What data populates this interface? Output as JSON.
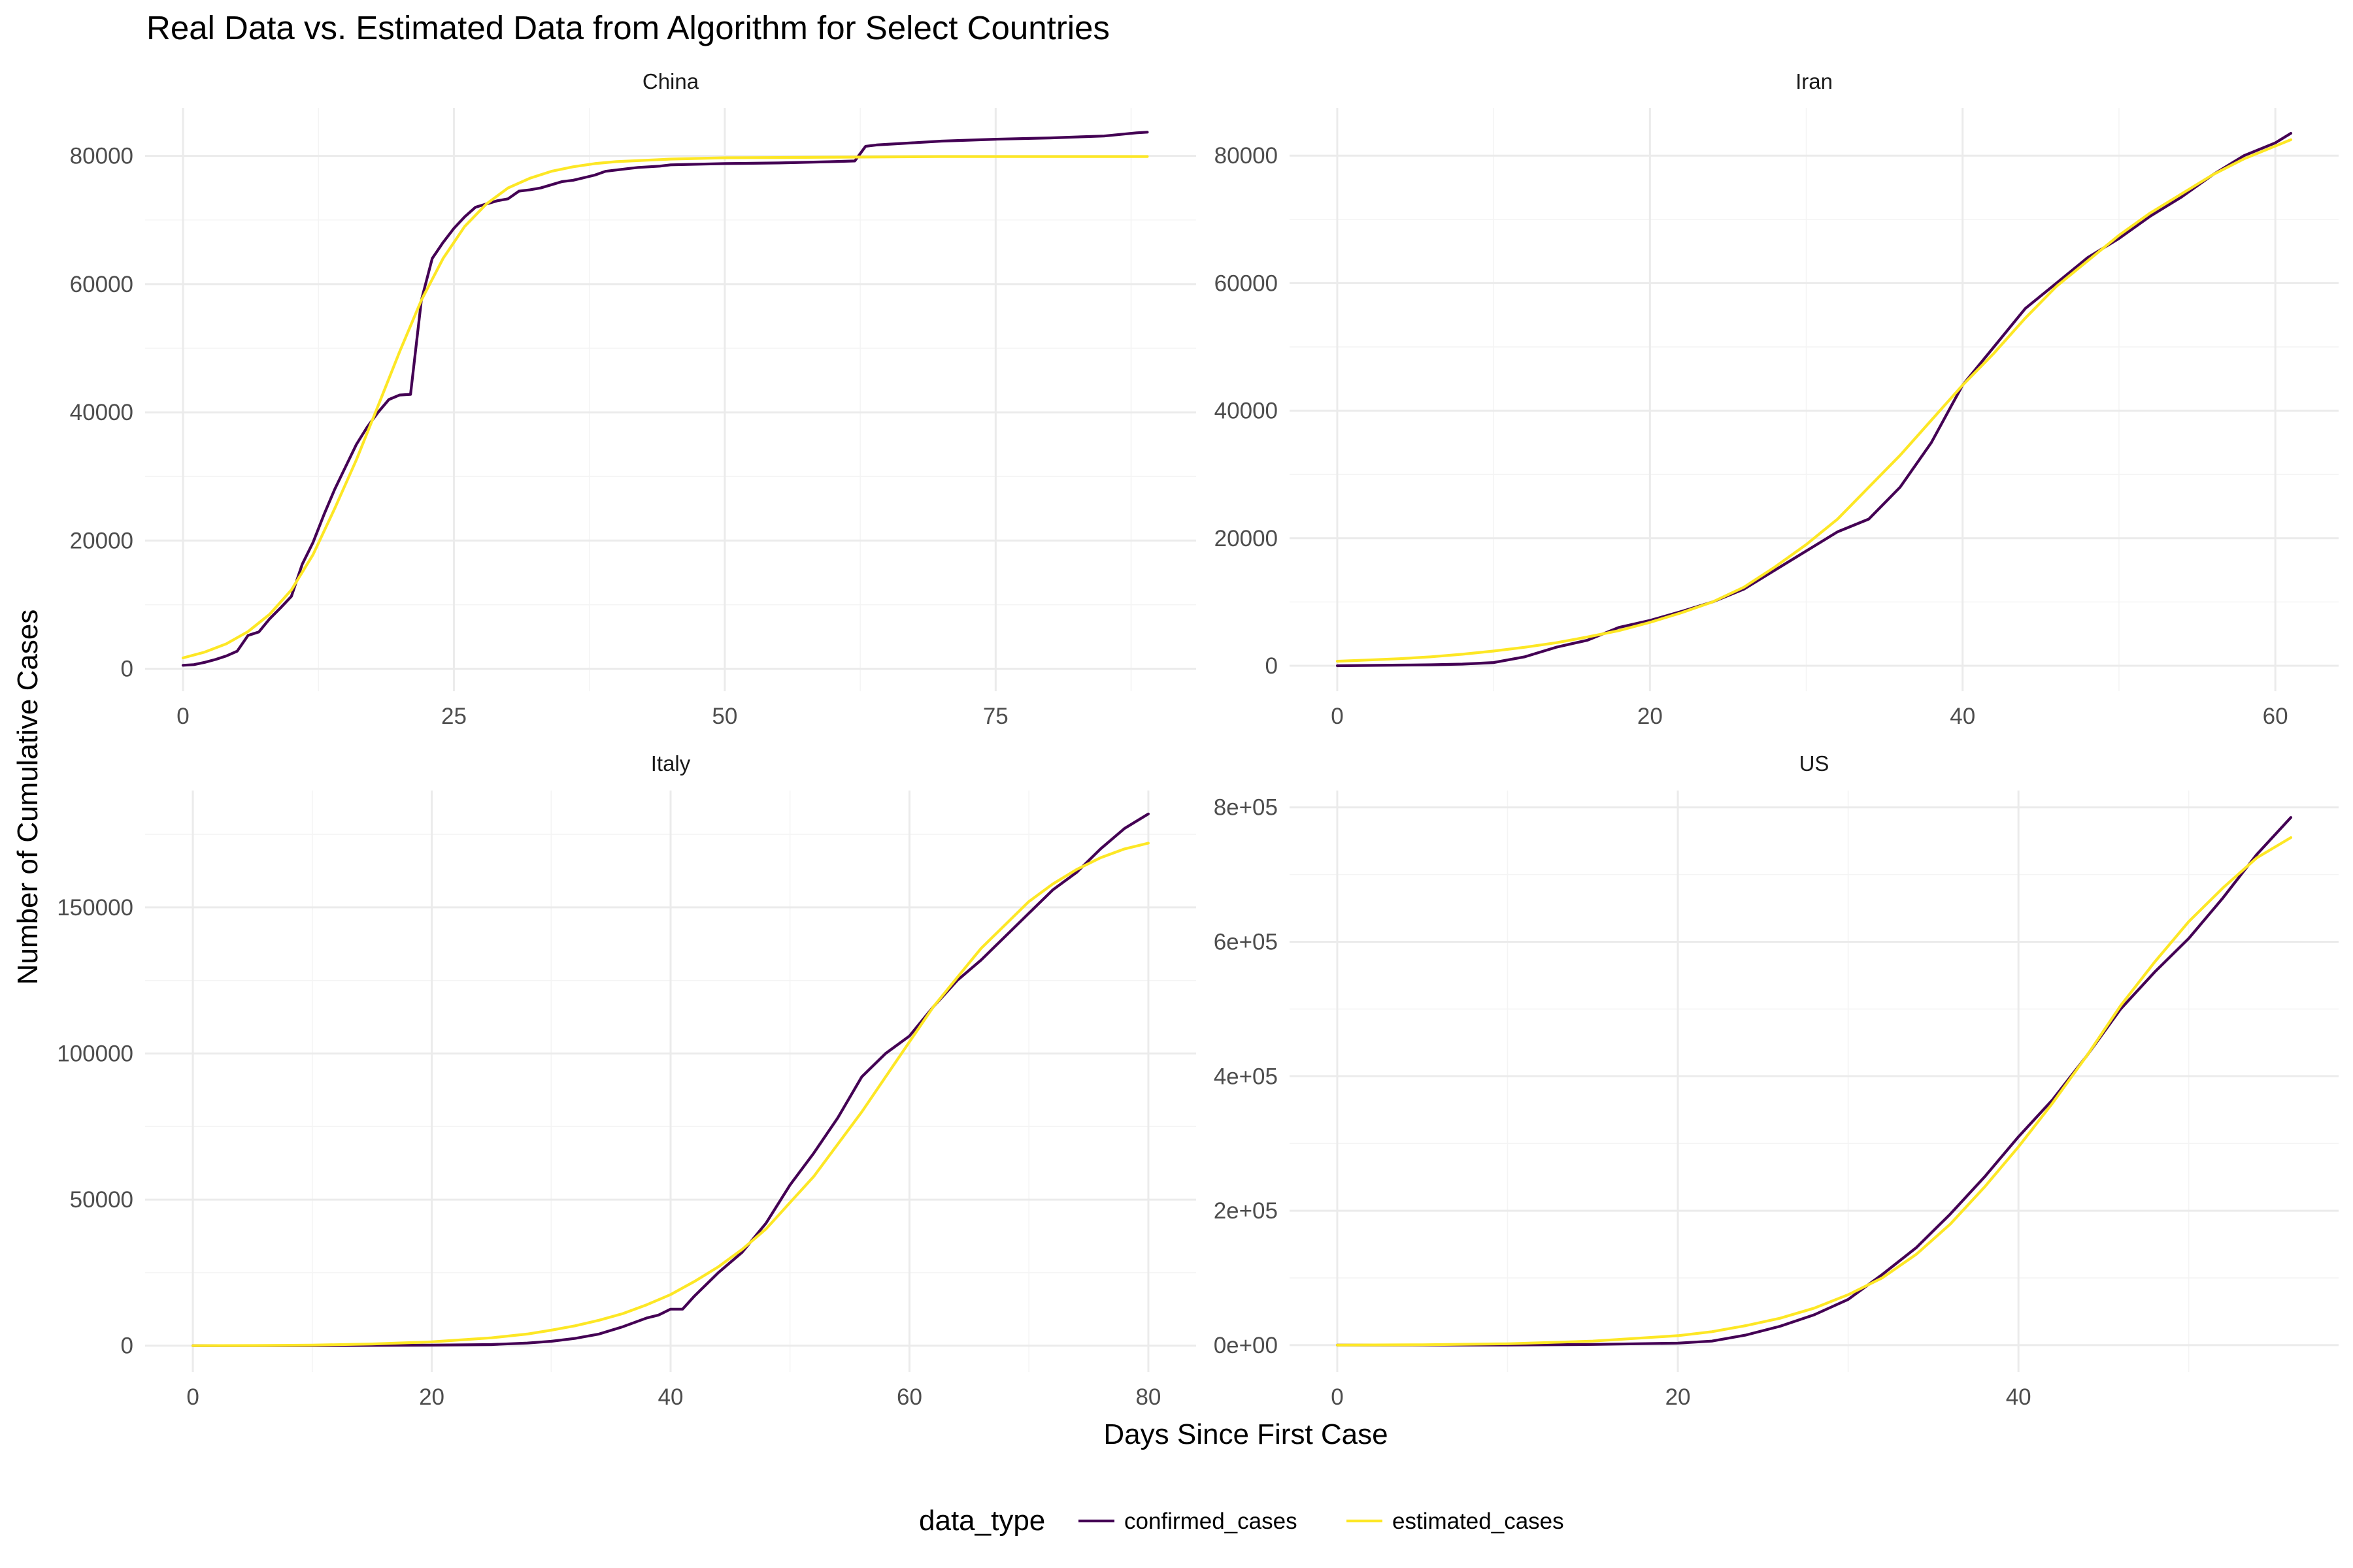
{
  "chart_data": {
    "type": "line",
    "title": "Real Data vs. Estimated Data from Algorithm for Select Countries",
    "xlabel": "Days Since First Case",
    "ylabel": "Number of Cumulative Cases",
    "legend": {
      "title": "data_type",
      "position": "bottom",
      "entries": [
        {
          "name": "confirmed_cases",
          "color": "#440154"
        },
        {
          "name": "estimated_cases",
          "color": "#FDE725"
        }
      ]
    },
    "colors": {
      "confirmed_cases": "#440154",
      "estimated_cases": "#FDE725",
      "grid": "#EBEBEB"
    },
    "panels": [
      {
        "name": "China",
        "xlim": [
          -3.5,
          93.5
        ],
        "ylim": [
          -3500,
          87500
        ],
        "xticks": [
          0,
          25,
          50,
          75
        ],
        "xtick_labels": [
          "0",
          "25",
          "50",
          "75"
        ],
        "yticks": [
          0,
          20000,
          40000,
          60000,
          80000
        ],
        "ytick_labels": [
          "0",
          "20000",
          "40000",
          "60000",
          "80000"
        ],
        "series": [
          {
            "name": "confirmed_cases",
            "x": [
              0,
              1,
              2,
              3,
              4,
              5,
              6,
              7,
              8,
              9,
              10,
              11,
              12,
              13,
              14,
              15,
              16,
              17,
              18,
              19,
              20,
              21,
              22,
              23,
              24,
              25,
              26,
              27,
              28,
              29,
              30,
              31,
              32,
              33,
              34,
              35,
              36,
              37,
              38,
              39,
              40,
              41,
              42,
              43,
              44,
              45,
              50,
              55,
              60,
              62,
              63,
              64,
              65,
              70,
              75,
              80,
              85,
              88,
              89
            ],
            "y": [
              550,
              650,
              1000,
              1450,
              2000,
              2750,
              5200,
              5750,
              7800,
              9500,
              11300,
              16300,
              19700,
              24000,
              28000,
              31500,
              35000,
              37700,
              40000,
              42000,
              42700,
              42800,
              57500,
              64000,
              66500,
              68700,
              70500,
              72000,
              72500,
              73000,
              73300,
              74500,
              74700,
              75000,
              75500,
              76000,
              76200,
              76600,
              77000,
              77600,
              77800,
              78000,
              78200,
              78300,
              78400,
              78600,
              78800,
              78900,
              79100,
              79200,
              81500,
              81700,
              81800,
              82300,
              82600,
              82800,
              83100,
              83600,
              83700
            ]
          },
          {
            "name": "estimated_cases",
            "x": [
              0,
              2,
              4,
              6,
              8,
              10,
              12,
              14,
              16,
              18,
              20,
              22,
              24,
              26,
              28,
              30,
              32,
              34,
              36,
              38,
              40,
              45,
              50,
              55,
              60,
              65,
              70,
              75,
              80,
              85,
              89
            ],
            "y": [
              1700,
              2600,
              3900,
              5800,
              8500,
              12300,
              17800,
              25000,
              32600,
              41000,
              49500,
              57500,
              64000,
              69000,
              72500,
              75000,
              76500,
              77600,
              78300,
              78800,
              79100,
              79500,
              79700,
              79750,
              79800,
              79850,
              79900,
              79900,
              79900,
              79900,
              79900
            ]
          }
        ]
      },
      {
        "name": "Iran",
        "xlim": [
          -3.05,
          64.05
        ],
        "ylim": [
          -4000,
          87500
        ],
        "xticks": [
          0,
          20,
          40,
          60
        ],
        "xtick_labels": [
          "0",
          "20",
          "40",
          "60"
        ],
        "yticks": [
          0,
          20000,
          40000,
          60000,
          80000
        ],
        "ytick_labels": [
          "0",
          "20000",
          "40000",
          "60000",
          "80000"
        ],
        "series": [
          {
            "name": "confirmed_cases",
            "x": [
              0,
              2,
              4,
              6,
              8,
              10,
              12,
              14,
              16,
              18,
              20,
              22,
              24,
              26,
              28,
              30,
              32,
              34,
              36,
              38,
              40,
              42,
              44,
              46,
              48,
              50,
              52,
              54,
              56,
              58,
              60,
              61
            ],
            "y": [
              0,
              50,
              100,
              150,
              250,
              500,
              1400,
              2900,
              4000,
              6000,
              7100,
              8500,
              10000,
              12000,
              15000,
              18000,
              21000,
              23000,
              28000,
              35000,
              44000,
              50000,
              56000,
              60000,
              64000,
              67000,
              70500,
              73500,
              77000,
              80000,
              82000,
              83500
            ]
          },
          {
            "name": "estimated_cases",
            "x": [
              0,
              2,
              4,
              6,
              8,
              10,
              12,
              14,
              16,
              18,
              20,
              22,
              24,
              26,
              28,
              30,
              32,
              34,
              36,
              38,
              40,
              42,
              44,
              46,
              48,
              50,
              52,
              54,
              56,
              58,
              60,
              61
            ],
            "y": [
              700,
              900,
              1100,
              1400,
              1800,
              2300,
              2900,
              3600,
              4500,
              5500,
              6800,
              8300,
              10000,
              12300,
              15500,
              19000,
              23000,
              28000,
              33000,
              38500,
              44000,
              49000,
              54500,
              59500,
              63500,
              67500,
              71000,
              74000,
              77000,
              79500,
              81500,
              82500
            ]
          }
        ]
      },
      {
        "name": "Italy",
        "xlim": [
          -4.0,
          84.0
        ],
        "ylim": [
          -9000,
          190000
        ],
        "xticks": [
          0,
          20,
          40,
          60,
          80
        ],
        "xtick_labels": [
          "0",
          "20",
          "40",
          "60",
          "80"
        ],
        "yticks": [
          0,
          50000,
          100000,
          150000
        ],
        "ytick_labels": [
          "0",
          "50000",
          "100000",
          "150000"
        ],
        "series": [
          {
            "name": "confirmed_cases",
            "x": [
              0,
              5,
              10,
              15,
              20,
              25,
              28,
              30,
              32,
              34,
              36,
              38,
              39,
              40,
              41,
              42,
              44,
              46,
              48,
              50,
              52,
              54,
              56,
              58,
              60,
              62,
              64,
              66,
              68,
              70,
              72,
              74,
              76,
              78,
              80
            ],
            "y": [
              0,
              0,
              0,
              100,
              200,
              400,
              900,
              1500,
              2500,
              4000,
              6500,
              9500,
              10500,
              12500,
              12500,
              17000,
              25000,
              32000,
              42000,
              55000,
              66000,
              78000,
              92000,
              100000,
              106000,
              116000,
              125000,
              132000,
              140000,
              148000,
              156000,
              162000,
              170000,
              177000,
              182000
            ]
          },
          {
            "name": "estimated_cases",
            "x": [
              0,
              5,
              10,
              15,
              20,
              25,
              28,
              30,
              32,
              34,
              36,
              38,
              40,
              42,
              44,
              46,
              48,
              50,
              52,
              54,
              56,
              58,
              60,
              62,
              64,
              66,
              68,
              70,
              72,
              74,
              76,
              78,
              80
            ],
            "y": [
              0,
              50,
              200,
              600,
              1300,
              2700,
              4000,
              5300,
              6800,
              8700,
              11000,
              14000,
              17500,
              22000,
              27000,
              33000,
              40000,
              49000,
              58000,
              69000,
              80000,
              92000,
              104000,
              116000,
              126000,
              136000,
              144000,
              152000,
              158000,
              163000,
              167000,
              170000,
              172000
            ]
          }
        ]
      },
      {
        "name": "US",
        "xlim": [
          -2.8,
          58.8
        ],
        "ylim": [
          -40000,
          825000
        ],
        "xticks": [
          0,
          20,
          40
        ],
        "xtick_labels": [
          "0",
          "20",
          "40"
        ],
        "yticks": [
          0,
          200000,
          400000,
          600000,
          800000
        ],
        "ytick_labels": [
          "0e+00",
          "2e+05",
          "4e+05",
          "6e+05",
          "8e+05"
        ],
        "series": [
          {
            "name": "confirmed_cases",
            "x": [
              0,
              5,
              10,
              15,
              20,
              22,
              24,
              26,
              28,
              30,
              32,
              34,
              36,
              38,
              40,
              42,
              44,
              46,
              48,
              50,
              52,
              54,
              56
            ],
            "y": [
              0,
              0,
              0,
              1000,
              3000,
              6000,
              15000,
              28000,
              45000,
              68000,
              105000,
              145000,
              195000,
              250000,
              310000,
              365000,
              430000,
              500000,
              555000,
              605000,
              665000,
              730000,
              785000
            ]
          },
          {
            "name": "estimated_cases",
            "x": [
              0,
              5,
              10,
              15,
              20,
              22,
              24,
              26,
              28,
              30,
              32,
              34,
              36,
              38,
              40,
              42,
              44,
              46,
              48,
              50,
              52,
              54,
              56
            ],
            "y": [
              0,
              500,
              2000,
              6000,
              14000,
              20000,
              29000,
              40000,
              55000,
              75000,
              100000,
              135000,
              180000,
              235000,
              295000,
              360000,
              430000,
              505000,
              570000,
              630000,
              680000,
              725000,
              755000
            ]
          }
        ]
      }
    ]
  }
}
